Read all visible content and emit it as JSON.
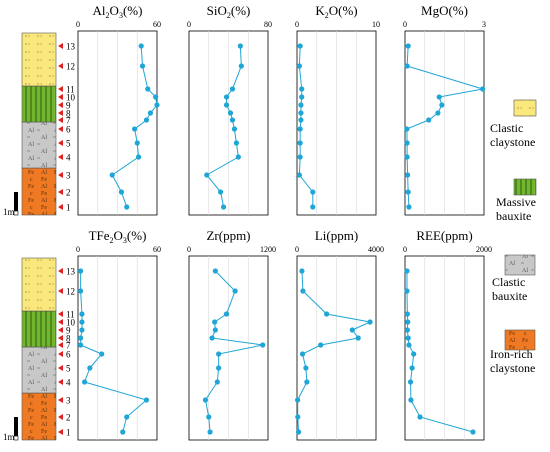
{
  "figure": {
    "samples": [
      1,
      2,
      3,
      4,
      5,
      6,
      7,
      8,
      9,
      10,
      11,
      12,
      13
    ],
    "scale_label": "1m",
    "legend": [
      {
        "key": "clastic_claystone",
        "label_lines": [
          "Clastic",
          "claystone"
        ],
        "color": "#fbe87c",
        "pattern": "dash"
      },
      {
        "key": "massive_bauxite",
        "label_lines": [
          "Massive",
          "bauxite"
        ],
        "color": "#72b62d",
        "pattern": "vertical"
      },
      {
        "key": "clastic_bauxite",
        "label_lines": [
          "Clastic",
          "bauxite"
        ],
        "color": "#c8c8c8",
        "pattern": "Al",
        "symbol": "Al"
      },
      {
        "key": "iron_rich_claystone",
        "label_lines": [
          "Iron-rich",
          "claystone"
        ],
        "color": "#f07a23",
        "pattern": "Fe",
        "symbol": "Fe",
        "symbol2": "Al"
      }
    ],
    "column_layers": [
      "iron_rich_claystone",
      "clastic_bauxite",
      "massive_bauxite",
      "clastic_claystone"
    ]
  },
  "chart_data": [
    {
      "type": "line",
      "title": "Al2O3(%)",
      "title_parts": [
        "Al",
        "2",
        "O",
        "3",
        "(%)"
      ],
      "xlim": [
        0,
        60
      ],
      "xticks": [
        "0",
        "60"
      ],
      "y_samples": [
        1,
        2,
        3,
        4,
        5,
        6,
        7,
        8,
        9,
        10,
        11,
        12,
        13
      ],
      "values": [
        37,
        33,
        26,
        46,
        45,
        43,
        52,
        55,
        60,
        59,
        53,
        49,
        48
      ]
    },
    {
      "type": "line",
      "title": "SiO2(%)",
      "title_parts": [
        "SiO",
        "2",
        "(%)"
      ],
      "xlim": [
        0,
        80
      ],
      "xticks": [
        "0",
        "80"
      ],
      "y_samples": [
        1,
        2,
        3,
        4,
        5,
        6,
        7,
        8,
        9,
        10,
        11,
        12,
        13
      ],
      "values": [
        35,
        32,
        18,
        50,
        48,
        46,
        44,
        42,
        38,
        38,
        44,
        53,
        52
      ]
    },
    {
      "type": "line",
      "title": "K2O(%)",
      "title_parts": [
        "K",
        "2",
        "O(%)"
      ],
      "xlim": [
        0,
        10
      ],
      "xticks": [
        "0",
        "10"
      ],
      "y_samples": [
        1,
        2,
        3,
        4,
        5,
        6,
        7,
        8,
        9,
        10,
        11,
        12,
        13
      ],
      "values": [
        2.0,
        2.0,
        0.3,
        0.4,
        0.4,
        0.4,
        0.5,
        0.5,
        0.5,
        0.6,
        0.6,
        0.3,
        0.4
      ]
    },
    {
      "type": "line",
      "title": "MgO(%)",
      "title_parts": [
        "MgO(%)"
      ],
      "xlim": [
        0,
        3
      ],
      "xticks": [
        "0",
        "3"
      ],
      "y_samples": [
        1,
        2,
        3,
        4,
        5,
        6,
        7,
        8,
        9,
        10,
        11,
        12,
        13
      ],
      "values": [
        0.15,
        0.12,
        0.1,
        0.08,
        0.08,
        0.07,
        0.9,
        1.25,
        1.4,
        1.3,
        2.95,
        0.08,
        0.12
      ]
    },
    {
      "type": "line",
      "title": "TFe2O3(%)",
      "title_parts": [
        "TFe",
        "2",
        "O",
        "3",
        "(%)"
      ],
      "xlim": [
        0,
        60
      ],
      "xticks": [
        "0",
        "60"
      ],
      "y_samples": [
        1,
        2,
        3,
        4,
        5,
        6,
        7,
        8,
        9,
        10,
        11,
        12,
        13
      ],
      "values": [
        34,
        37,
        52,
        5,
        9,
        18,
        2,
        2,
        3,
        3,
        3,
        2,
        2
      ]
    },
    {
      "type": "line",
      "title": "Zr(ppm)",
      "title_parts": [
        "Zr(ppm)"
      ],
      "xlim": [
        0,
        1200
      ],
      "xticks": [
        "0",
        "1200"
      ],
      "y_samples": [
        1,
        2,
        3,
        4,
        5,
        6,
        7,
        8,
        9,
        10,
        11,
        12,
        13
      ],
      "values": [
        320,
        300,
        250,
        430,
        450,
        450,
        1120,
        350,
        400,
        390,
        570,
        700,
        400
      ]
    },
    {
      "type": "line",
      "title": "Li(ppm)",
      "title_parts": [
        "Li(ppm)"
      ],
      "xlim": [
        0,
        4000
      ],
      "xticks": [
        "0",
        "4000"
      ],
      "y_samples": [
        1,
        2,
        3,
        4,
        5,
        6,
        7,
        8,
        9,
        10,
        11,
        12,
        13
      ],
      "values": [
        80,
        40,
        30,
        500,
        450,
        280,
        1200,
        3100,
        2800,
        3700,
        1500,
        300,
        250
      ]
    },
    {
      "type": "line",
      "title": "REE(ppm)",
      "title_parts": [
        "REE(ppm)"
      ],
      "xlim": [
        0,
        2000
      ],
      "xticks": [
        "0",
        "2000"
      ],
      "y_samples": [
        1,
        2,
        3,
        4,
        5,
        6,
        7,
        8,
        9,
        10,
        11,
        12,
        13
      ],
      "values": [
        1720,
        380,
        150,
        140,
        180,
        220,
        100,
        80,
        60,
        70,
        60,
        50,
        50
      ]
    }
  ]
}
